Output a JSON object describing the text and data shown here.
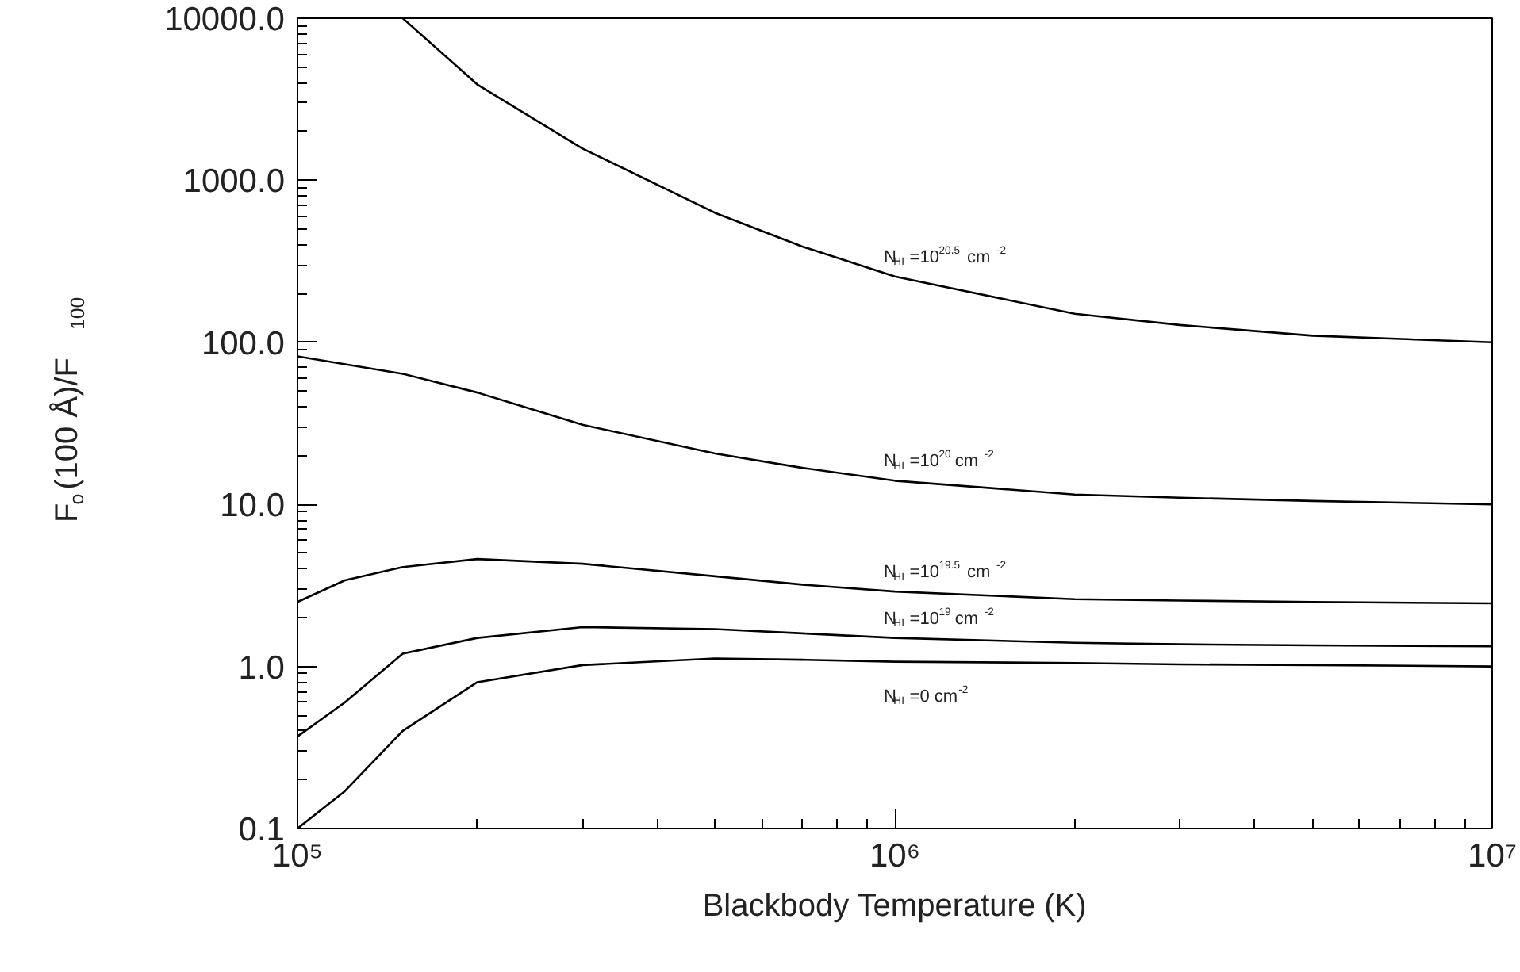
{
  "chart_data": {
    "type": "line",
    "xlabel": "Blackbody Temperature (K)",
    "ylabel": "F$_{o}$(100 Å)/F$_{100}$",
    "log": "xy",
    "grid": false,
    "legend": false,
    "line_style": "solid",
    "marker": "none",
    "xlim": [
      100000,
      10000000
    ],
    "ylim": [
      0.1,
      10000
    ],
    "xticks": [
      {
        "value": 100000,
        "label": "10⁵"
      },
      {
        "value": 1000000,
        "label": "10⁶"
      },
      {
        "value": 10000000,
        "label": "10⁷"
      }
    ],
    "yticks": [
      {
        "value": 0.1,
        "label": "0.1"
      },
      {
        "value": 1,
        "label": "1.0"
      },
      {
        "value": 10,
        "label": "10.0"
      },
      {
        "value": 100,
        "label": "100.0"
      },
      {
        "value": 1000,
        "label": "1000.0"
      },
      {
        "value": 10000,
        "label": "10000.0"
      }
    ],
    "series": [
      {
        "name": "N$_{HI}$=10$^{20.5}$ cm$^{-2}$",
        "color": "#000000",
        "x": [
          150000,
          200000,
          300000,
          500000,
          700000,
          1000000,
          2000000,
          3000000,
          5000000,
          10000000
        ],
        "values": [
          10000,
          3900,
          1570,
          630,
          390,
          255,
          150,
          128,
          110,
          100
        ]
      },
      {
        "name": "N$_{HI}$=10$^{20}$ cm$^{-2}$",
        "color": "#000000",
        "x": [
          100000,
          150000,
          200000,
          300000,
          500000,
          700000,
          1000000,
          2000000,
          3000000,
          5000000,
          10000000
        ],
        "values": [
          82,
          64,
          49,
          31,
          20.6,
          16.8,
          14,
          11.5,
          11,
          10.5,
          10
        ]
      },
      {
        "name": "N$_{HI}$=10$^{19.5}$ cm$^{-2}$",
        "color": "#000000",
        "x": [
          100000,
          120000,
          150000,
          200000,
          300000,
          500000,
          700000,
          1000000,
          2000000,
          3000000,
          5000000,
          10000000
        ],
        "values": [
          2.5,
          3.4,
          4.1,
          4.6,
          4.3,
          3.6,
          3.2,
          2.9,
          2.6,
          2.55,
          2.5,
          2.45
        ]
      },
      {
        "name": "N$_{HI}$=10$^{19}$ cm$^{-2}$",
        "color": "#000000",
        "x": [
          100000,
          120000,
          150000,
          200000,
          300000,
          500000,
          700000,
          1000000,
          2000000,
          3000000,
          5000000,
          10000000
        ],
        "values": [
          0.37,
          0.6,
          1.2,
          1.5,
          1.75,
          1.7,
          1.6,
          1.5,
          1.4,
          1.37,
          1.35,
          1.33
        ]
      },
      {
        "name": "N$_{HI}$=0 cm$^{-2}$",
        "color": "#000000",
        "x": [
          100000,
          120000,
          150000,
          200000,
          300000,
          500000,
          700000,
          1000000,
          2000000,
          3000000,
          5000000,
          10000000
        ],
        "values": [
          0.1,
          0.17,
          0.4,
          0.8,
          1.02,
          1.12,
          1.1,
          1.07,
          1.05,
          1.03,
          1.02,
          1.0
        ]
      }
    ]
  }
}
